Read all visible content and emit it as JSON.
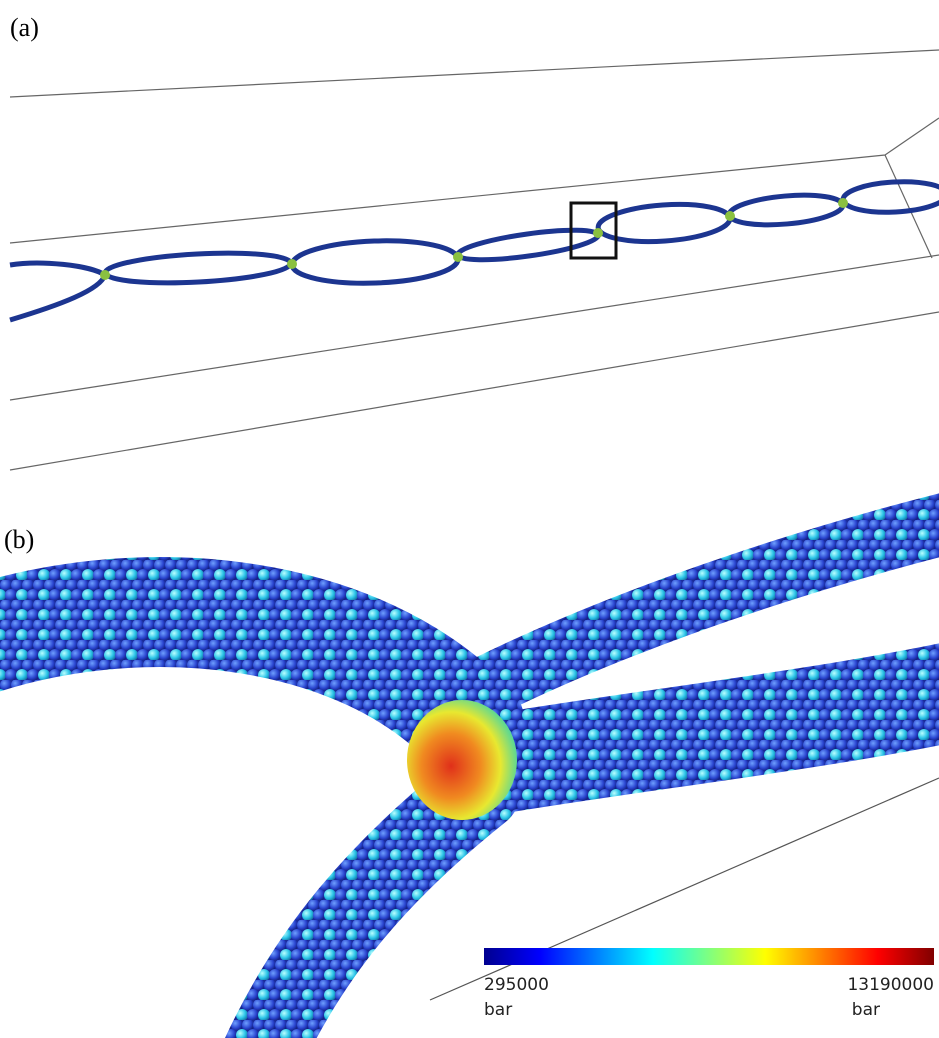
{
  "panels": [
    {
      "label": "(a)"
    },
    {
      "label": "(b)",
      "colorbar": {
        "min": 295000,
        "min_unit": "bar",
        "max": 13190000,
        "max_unit": "bar"
      }
    }
  ]
}
